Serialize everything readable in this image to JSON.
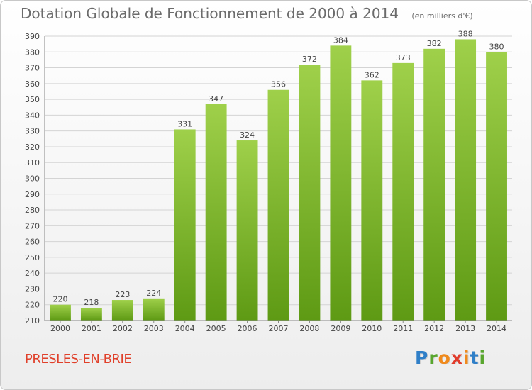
{
  "header": {
    "title": "Dotation Globale de Fonctionnement de 2000 à 2014",
    "unit": "(en milliers d'€)"
  },
  "footer": {
    "place": "PRESLES-EN-BRIE",
    "logo_letters": [
      "P",
      "r",
      "o",
      "x",
      "i",
      "t",
      "i"
    ],
    "logo_colors": [
      "#2f7fc8",
      "#58a62e",
      "#f08a1c",
      "#e13b2b",
      "#f08a1c",
      "#2f7fc8",
      "#58a62e"
    ]
  },
  "chart_data": {
    "type": "bar",
    "title": "Dotation Globale de Fonctionnement de 2000 à 2014",
    "categories": [
      "2000",
      "2001",
      "2002",
      "2003",
      "2004",
      "2005",
      "2006",
      "2007",
      "2008",
      "2009",
      "2010",
      "2011",
      "2012",
      "2013",
      "2014"
    ],
    "values": [
      220,
      218,
      223,
      224,
      331,
      347,
      324,
      356,
      372,
      384,
      362,
      373,
      382,
      388,
      380
    ],
    "ylim": [
      210,
      390
    ],
    "yticks": [
      210,
      220,
      230,
      240,
      250,
      260,
      270,
      280,
      290,
      300,
      310,
      320,
      330,
      340,
      350,
      360,
      370,
      380,
      390
    ],
    "grid": true,
    "bar_color_top": "#9fd04a",
    "bar_color_bottom": "#5e9a14"
  }
}
